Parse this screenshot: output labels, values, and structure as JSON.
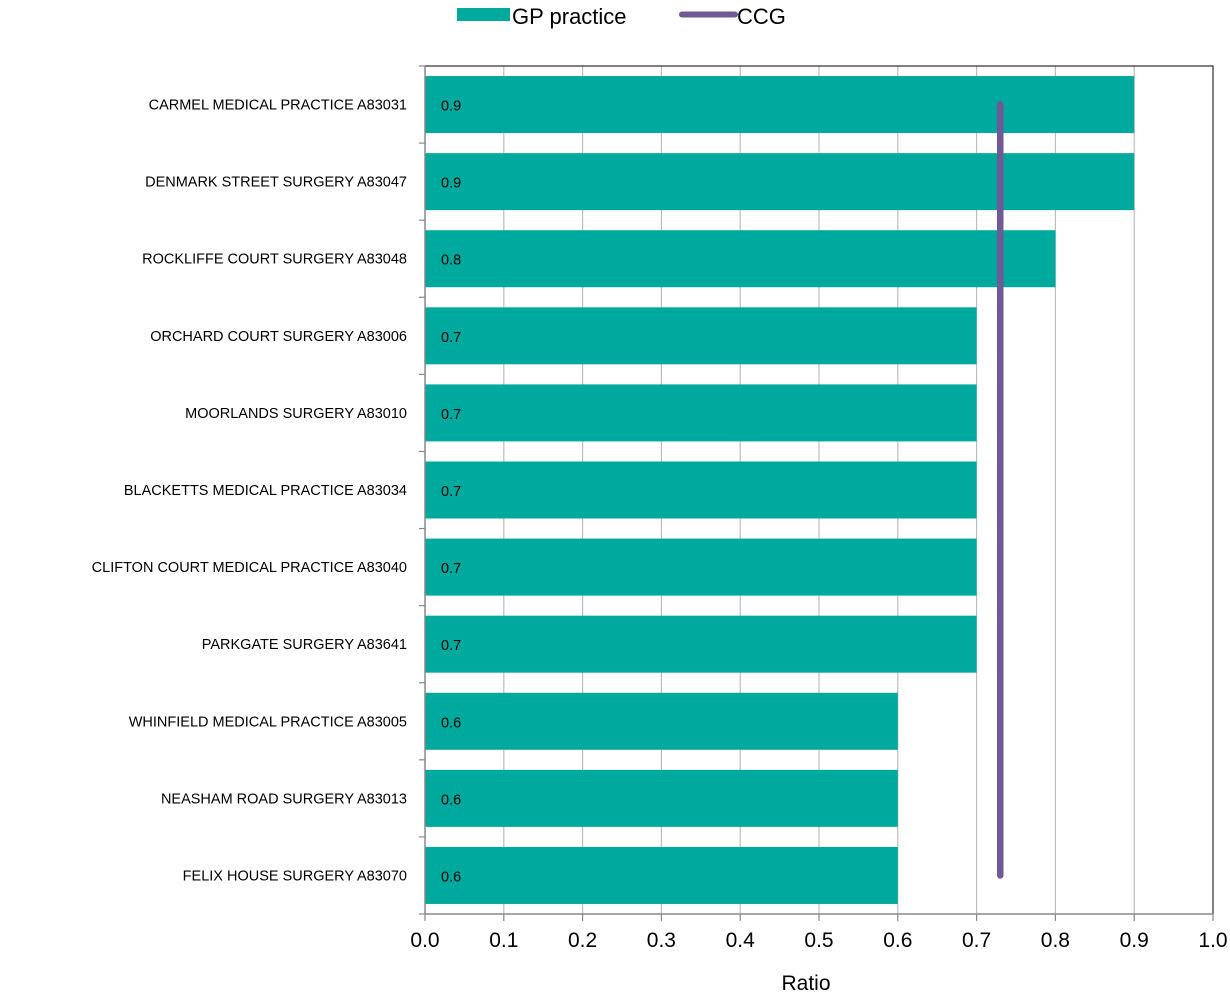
{
  "chart_data": {
    "type": "bar",
    "orientation": "horizontal",
    "title": "",
    "xlabel": "Ratio",
    "ylabel": "",
    "xlim": [
      0.0,
      1.0
    ],
    "x_ticks": [
      "0.0",
      "0.1",
      "0.2",
      "0.3",
      "0.4",
      "0.5",
      "0.6",
      "0.7",
      "0.8",
      "0.9",
      "1.0"
    ],
    "grid": "vertical",
    "legend_position": "top",
    "categories": [
      "CARMEL MEDICAL PRACTICE A83031",
      "DENMARK STREET SURGERY A83047",
      "ROCKLIFFE COURT SURGERY A83048",
      "ORCHARD COURT SURGERY A83006",
      "MOORLANDS SURGERY A83010",
      "BLACKETTS MEDICAL PRACTICE A83034",
      "CLIFTON COURT MEDICAL PRACTICE A83040",
      "PARKGATE SURGERY A83641",
      "WHINFIELD MEDICAL PRACTICE A83005",
      "NEASHAM ROAD SURGERY A83013",
      "FELIX HOUSE SURGERY A83070"
    ],
    "series": [
      {
        "name": "GP practice",
        "kind": "bar",
        "color": "#00A99D",
        "values": [
          0.9,
          0.9,
          0.8,
          0.7,
          0.7,
          0.7,
          0.7,
          0.7,
          0.6,
          0.6,
          0.6
        ],
        "labels": [
          "0.9",
          "0.9",
          "0.8",
          "0.7",
          "0.7",
          "0.7",
          "0.7",
          "0.7",
          "0.6",
          "0.6",
          "0.6"
        ]
      },
      {
        "name": "CCG",
        "kind": "reference-line",
        "color": "#6F5A96",
        "value": 0.73
      }
    ]
  }
}
